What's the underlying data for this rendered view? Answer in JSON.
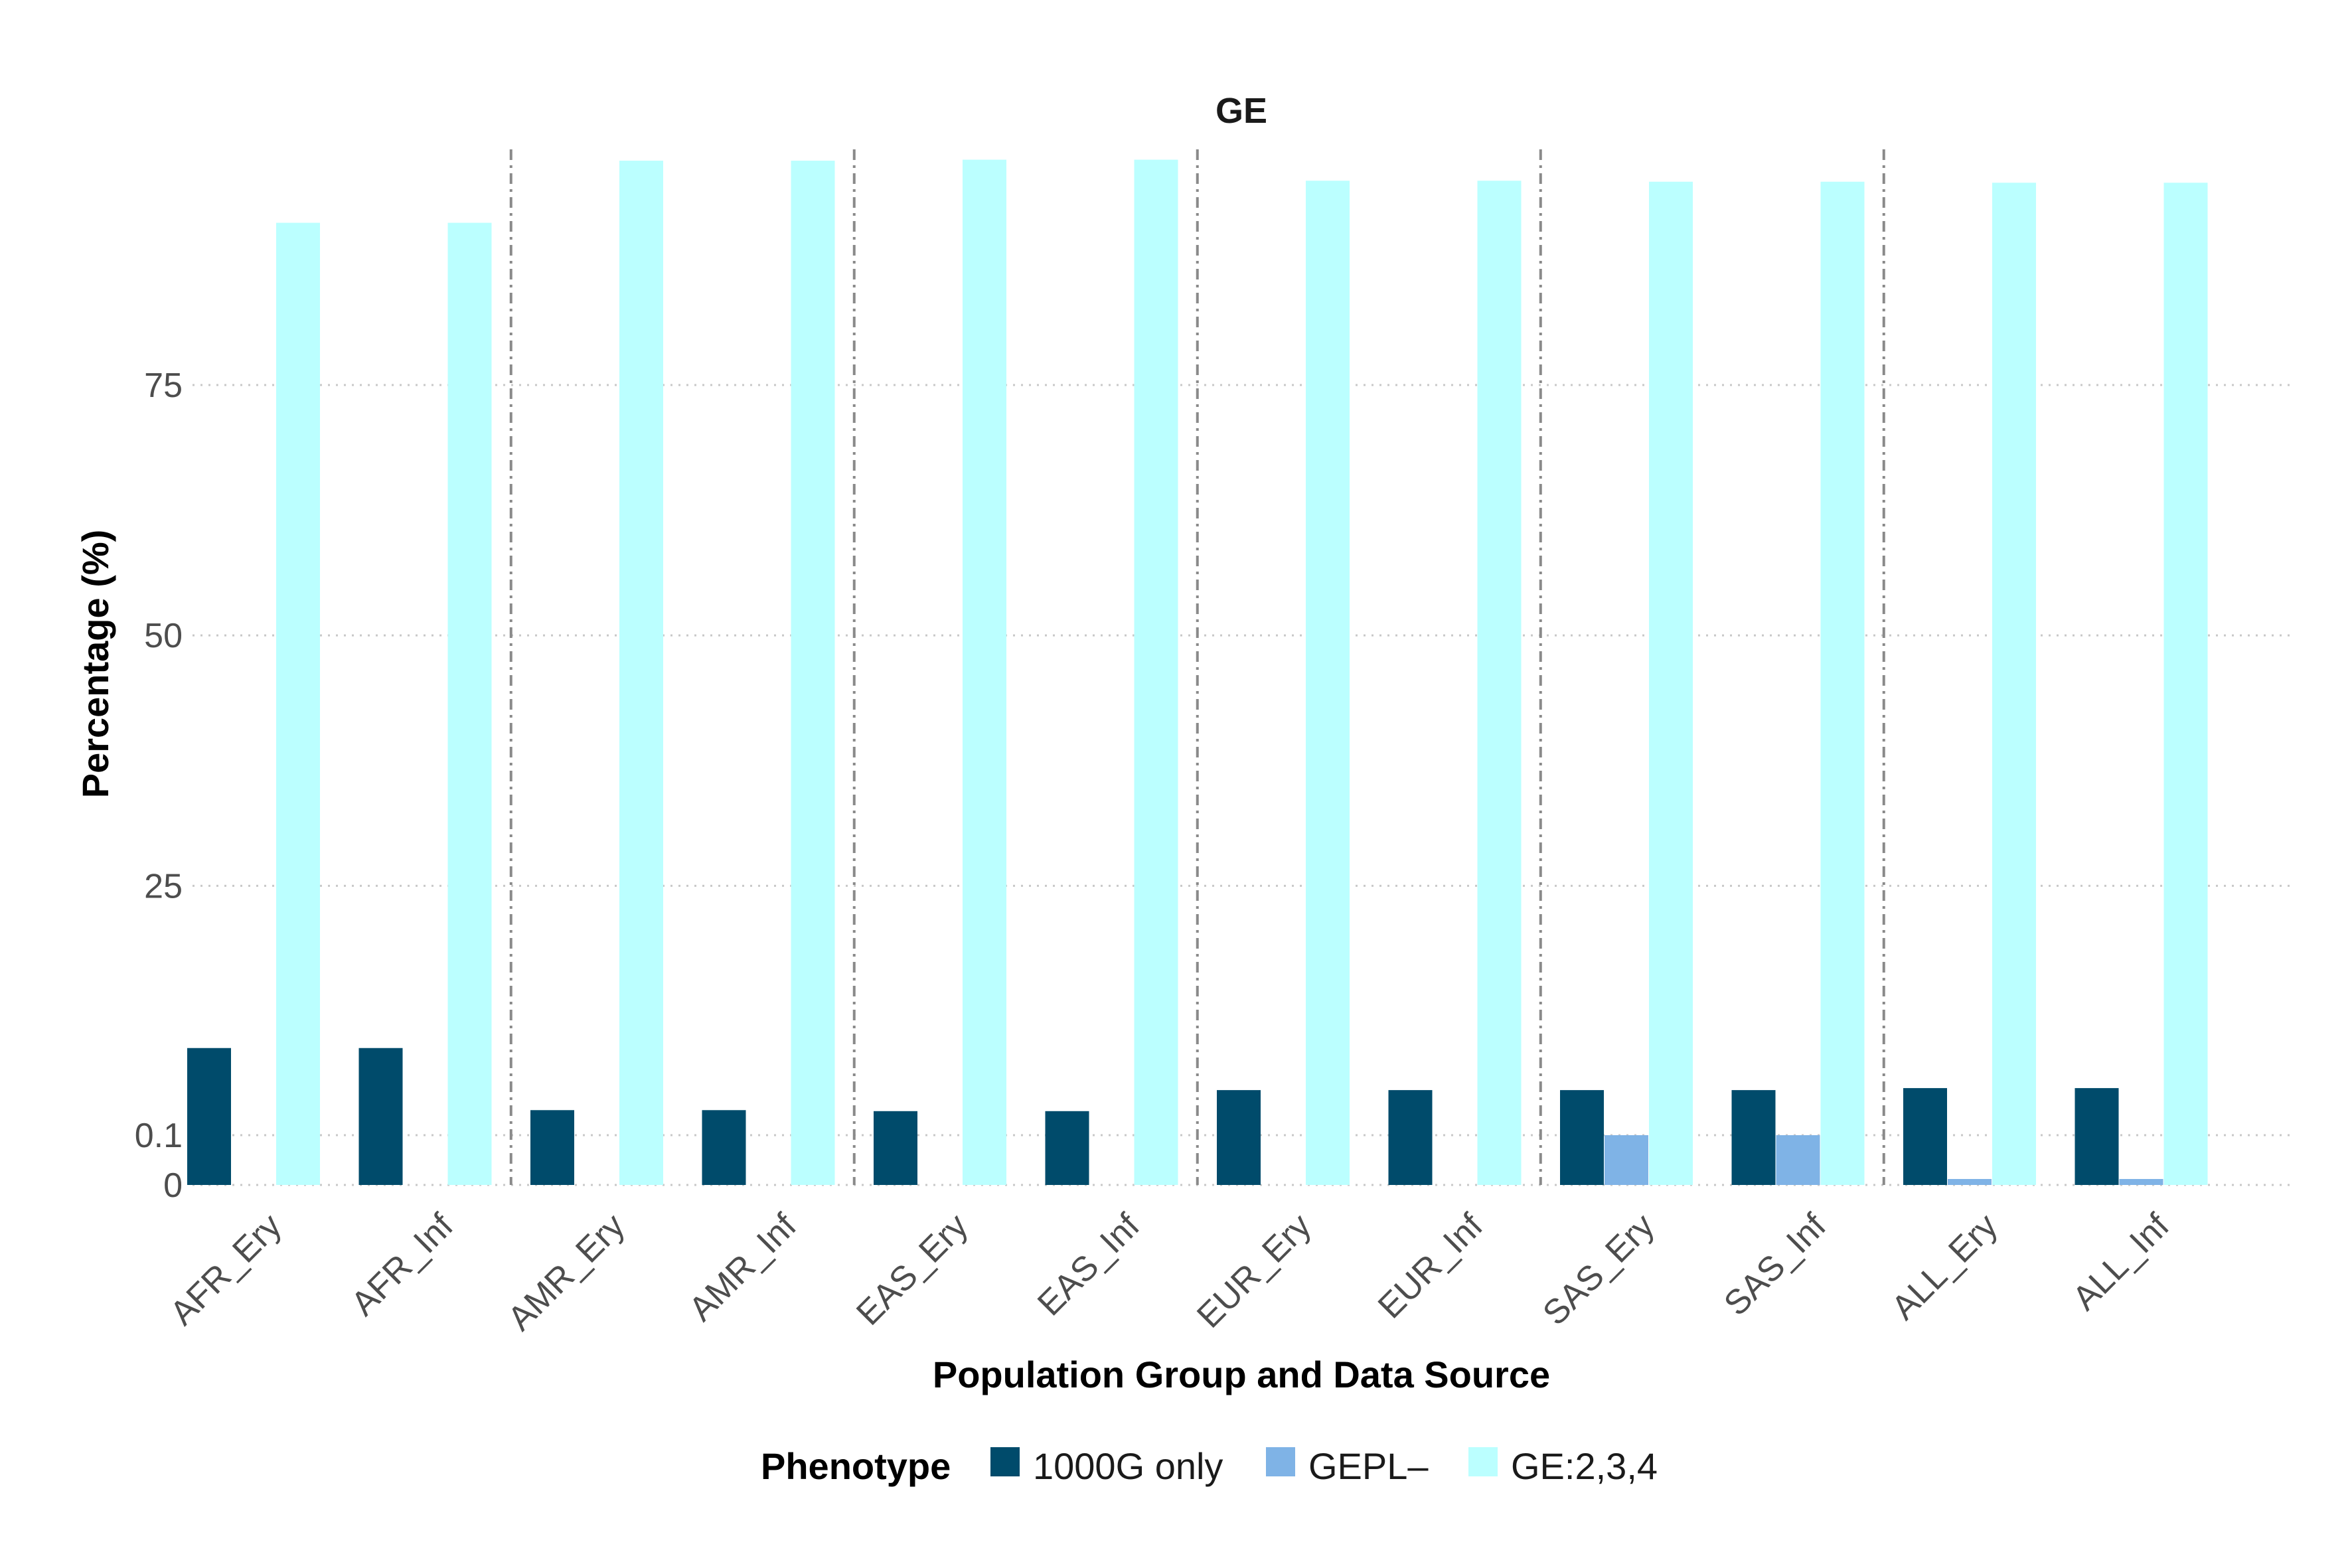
{
  "chart_data": {
    "type": "bar",
    "title": "GE",
    "xlabel": "Population Group and Data Source",
    "ylabel": "Percentage (%)",
    "categories": [
      "AFR_Ery",
      "AFR_Inf",
      "AMR_Ery",
      "AMR_Inf",
      "EAS_Ery",
      "EAS_Inf",
      "EUR_Ery",
      "EUR_Inf",
      "SAS_Ery",
      "SAS_Inf",
      "ALL_Ery",
      "ALL_Inf"
    ],
    "y_ticks": [
      {
        "value": 0,
        "label": "0"
      },
      {
        "value": 0.1,
        "label": "0.1"
      },
      {
        "value": 25,
        "label": "25"
      },
      {
        "value": 50,
        "label": "50"
      },
      {
        "value": 75,
        "label": "75"
      }
    ],
    "y_axis_note": "transformed scale (compressed near zero)",
    "legend": {
      "title": "Phenotype",
      "placement": "bottom"
    },
    "series": [
      {
        "name": "1000G only",
        "color": "#004b6b",
        "values": [
          8.8,
          8.8,
          2.6,
          2.6,
          2.5,
          2.5,
          4.6,
          4.6,
          4.6,
          4.6,
          4.8,
          4.8
        ]
      },
      {
        "name": "GEPL–",
        "color": "#7fb3e6",
        "values": [
          0,
          0,
          0,
          0,
          0,
          0,
          0,
          0,
          0.1,
          0.1,
          0.012,
          0.012
        ]
      },
      {
        "name": "GE:2,3,4",
        "color": "#bbffff",
        "values": [
          91.2,
          91.2,
          97.4,
          97.4,
          97.5,
          97.5,
          95.4,
          95.4,
          95.3,
          95.3,
          95.2,
          95.2
        ]
      }
    ],
    "group_separators": "dash-dot vertical lines between population groups",
    "grid": "horizontal dotted"
  }
}
